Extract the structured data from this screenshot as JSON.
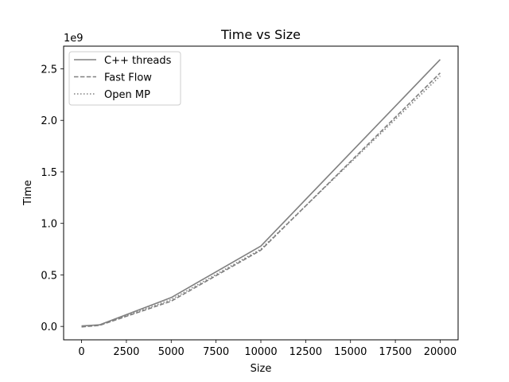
{
  "chart_data": {
    "type": "line",
    "title": "Time vs Size",
    "xlabel": "Size",
    "ylabel": "Time",
    "y_offset_text": "1e9",
    "xlim": [
      -1000,
      21000
    ],
    "ylim": [
      -0.13,
      2.72
    ],
    "xticks": [
      0,
      2500,
      5000,
      7500,
      10000,
      12500,
      15000,
      17500,
      20000
    ],
    "xtick_labels": [
      "0",
      "2500",
      "5000",
      "7500",
      "10000",
      "12500",
      "15000",
      "17500",
      "20000"
    ],
    "yticks": [
      0.0,
      0.5,
      1.0,
      1.5,
      2.0,
      2.5
    ],
    "ytick_labels": [
      "0.0",
      "0.5",
      "1.0",
      "1.5",
      "2.0",
      "2.5"
    ],
    "legend_position": "top-left",
    "grid": false,
    "series": [
      {
        "name": "C++ threads",
        "style": "solid",
        "color": "#808080",
        "x": [
          0,
          1000,
          5000,
          10000,
          20000
        ],
        "y": [
          0.005,
          0.015,
          0.28,
          0.78,
          2.59
        ]
      },
      {
        "name": "Fast Flow",
        "style": "dashed",
        "color": "#808080",
        "x": [
          0,
          1000,
          5000,
          10000,
          20000
        ],
        "y": [
          -0.005,
          0.01,
          0.245,
          0.74,
          2.46
        ]
      },
      {
        "name": "Open MP",
        "style": "dotted",
        "color": "#808080",
        "x": [
          0,
          1000,
          5000,
          10000,
          20000
        ],
        "y": [
          0.0,
          0.012,
          0.26,
          0.75,
          2.43
        ]
      }
    ]
  }
}
